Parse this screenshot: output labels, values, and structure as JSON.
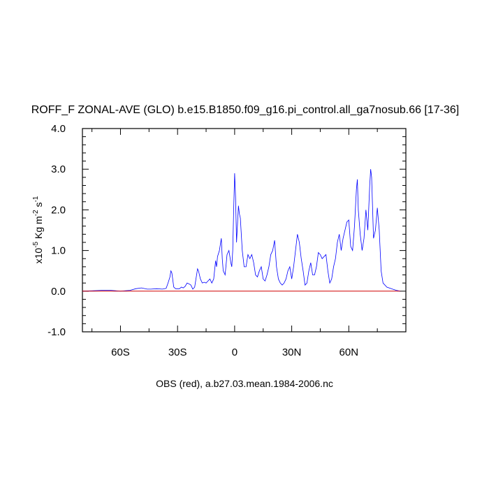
{
  "chart_data": {
    "type": "line",
    "title": "ROFF_F ZONAL-AVE (GLO) b.e15.B1850.f09_g16.pi_control.all_ga7nosub.66 [17-36]",
    "ylabel": {
      "prefix": "x10",
      "exp1": "-5",
      "mid": " Kg m",
      "exp2": "-2",
      "mid2": " s",
      "exp3": "-1"
    },
    "xlabel": "OBS (red), a.b27.03.mean.1984-2006.nc",
    "xlim": [
      -80,
      90
    ],
    "ylim": [
      -1.0,
      4.0
    ],
    "x_ticks": [
      {
        "value": -60,
        "label": "60S"
      },
      {
        "value": -30,
        "label": "30S"
      },
      {
        "value": 0,
        "label": "0"
      },
      {
        "value": 30,
        "label": "30N"
      },
      {
        "value": 60,
        "label": "60N"
      }
    ],
    "y_ticks": [
      {
        "value": -1.0,
        "label": "-1.0"
      },
      {
        "value": 0.0,
        "label": "0.0"
      },
      {
        "value": 1.0,
        "label": "1.0"
      },
      {
        "value": 2.0,
        "label": "2.0"
      },
      {
        "value": 3.0,
        "label": "3.0"
      },
      {
        "value": 4.0,
        "label": "4.0"
      }
    ],
    "series": [
      {
        "color": "#0000ff",
        "points": [
          [
            -80,
            0
          ],
          [
            -75,
            0.01
          ],
          [
            -70,
            0.02
          ],
          [
            -65,
            0.02
          ],
          [
            -60,
            0.0
          ],
          [
            -55,
            0.02
          ],
          [
            -52,
            0.06
          ],
          [
            -49,
            0.08
          ],
          [
            -46,
            0.05
          ],
          [
            -44,
            0.05
          ],
          [
            -41,
            0.06
          ],
          [
            -38,
            0.05
          ],
          [
            -36,
            0.07
          ],
          [
            -35,
            0.2
          ],
          [
            -34,
            0.35
          ],
          [
            -33.5,
            0.5
          ],
          [
            -33,
            0.45
          ],
          [
            -32,
            0.1
          ],
          [
            -31,
            0.06
          ],
          [
            -29,
            0.06
          ],
          [
            -28,
            0.1
          ],
          [
            -27,
            0.08
          ],
          [
            -26,
            0.12
          ],
          [
            -25,
            0.2
          ],
          [
            -24,
            0.18
          ],
          [
            -23,
            0.15
          ],
          [
            -22,
            0.05
          ],
          [
            -21,
            0.1
          ],
          [
            -20,
            0.4
          ],
          [
            -19.5,
            0.55
          ],
          [
            -19,
            0.5
          ],
          [
            -18,
            0.3
          ],
          [
            -17,
            0.2
          ],
          [
            -16,
            0.22
          ],
          [
            -15,
            0.2
          ],
          [
            -14,
            0.25
          ],
          [
            -13,
            0.3
          ],
          [
            -12,
            0.2
          ],
          [
            -11,
            0.3
          ],
          [
            -10,
            0.75
          ],
          [
            -9.5,
            0.6
          ],
          [
            -9,
            0.85
          ],
          [
            -8,
            1.0
          ],
          [
            -7,
            1.3
          ],
          [
            -6.5,
            0.8
          ],
          [
            -6,
            0.5
          ],
          [
            -5,
            0.4
          ],
          [
            -4,
            0.9
          ],
          [
            -3,
            1.0
          ],
          [
            -2,
            0.7
          ],
          [
            -1.5,
            0.6
          ],
          [
            -1,
            1.0
          ],
          [
            -0.5,
            2.0
          ],
          [
            0,
            2.9
          ],
          [
            0.5,
            2.3
          ],
          [
            1,
            1.2
          ],
          [
            2,
            2.1
          ],
          [
            2.5,
            1.9
          ],
          [
            3,
            1.8
          ],
          [
            4,
            1.0
          ],
          [
            5,
            0.6
          ],
          [
            6,
            0.6
          ],
          [
            7,
            0.9
          ],
          [
            8,
            0.8
          ],
          [
            9,
            0.9
          ],
          [
            10,
            0.7
          ],
          [
            11,
            0.4
          ],
          [
            12,
            0.35
          ],
          [
            13,
            0.5
          ],
          [
            14,
            0.6
          ],
          [
            15,
            0.3
          ],
          [
            16,
            0.25
          ],
          [
            17,
            0.4
          ],
          [
            18,
            0.6
          ],
          [
            19,
            0.9
          ],
          [
            20,
            1.0
          ],
          [
            21,
            1.25
          ],
          [
            22,
            0.6
          ],
          [
            23,
            0.3
          ],
          [
            24,
            0.2
          ],
          [
            25,
            0.15
          ],
          [
            26,
            0.2
          ],
          [
            27,
            0.3
          ],
          [
            28,
            0.5
          ],
          [
            29,
            0.6
          ],
          [
            30,
            0.3
          ],
          [
            31,
            0.6
          ],
          [
            32,
            1.0
          ],
          [
            33,
            1.4
          ],
          [
            34,
            1.2
          ],
          [
            35,
            0.8
          ],
          [
            36,
            0.5
          ],
          [
            37,
            0.15
          ],
          [
            38,
            0.2
          ],
          [
            39,
            0.5
          ],
          [
            40,
            0.7
          ],
          [
            41,
            0.4
          ],
          [
            42,
            0.4
          ],
          [
            43,
            0.6
          ],
          [
            44,
            0.95
          ],
          [
            45,
            0.9
          ],
          [
            46,
            0.8
          ],
          [
            47,
            0.85
          ],
          [
            48,
            0.9
          ],
          [
            49,
            0.5
          ],
          [
            50,
            0.2
          ],
          [
            51,
            0.3
          ],
          [
            52,
            0.6
          ],
          [
            53,
            0.8
          ],
          [
            54,
            1.2
          ],
          [
            55,
            1.4
          ],
          [
            56,
            1.0
          ],
          [
            57,
            1.3
          ],
          [
            58,
            1.5
          ],
          [
            59,
            1.7
          ],
          [
            60,
            1.75
          ],
          [
            61,
            1.1
          ],
          [
            62,
            1.0
          ],
          [
            63,
            1.6
          ],
          [
            64,
            2.5
          ],
          [
            64.5,
            2.75
          ],
          [
            65,
            2.0
          ],
          [
            66,
            1.4
          ],
          [
            67,
            1.0
          ],
          [
            68,
            1.3
          ],
          [
            69,
            2.0
          ],
          [
            70,
            1.5
          ],
          [
            71,
            2.6
          ],
          [
            71.5,
            3.0
          ],
          [
            72,
            2.8
          ],
          [
            73,
            1.3
          ],
          [
            74,
            1.5
          ],
          [
            75,
            2.05
          ],
          [
            76,
            1.5
          ],
          [
            77,
            0.5
          ],
          [
            78,
            0.2
          ],
          [
            80,
            0.1
          ],
          [
            83,
            0.05
          ],
          [
            85,
            0.02
          ],
          [
            87,
            0
          ]
        ]
      },
      {
        "color": "#d00000",
        "points": [
          [
            -80,
            0
          ],
          [
            87,
            0
          ]
        ]
      }
    ]
  }
}
